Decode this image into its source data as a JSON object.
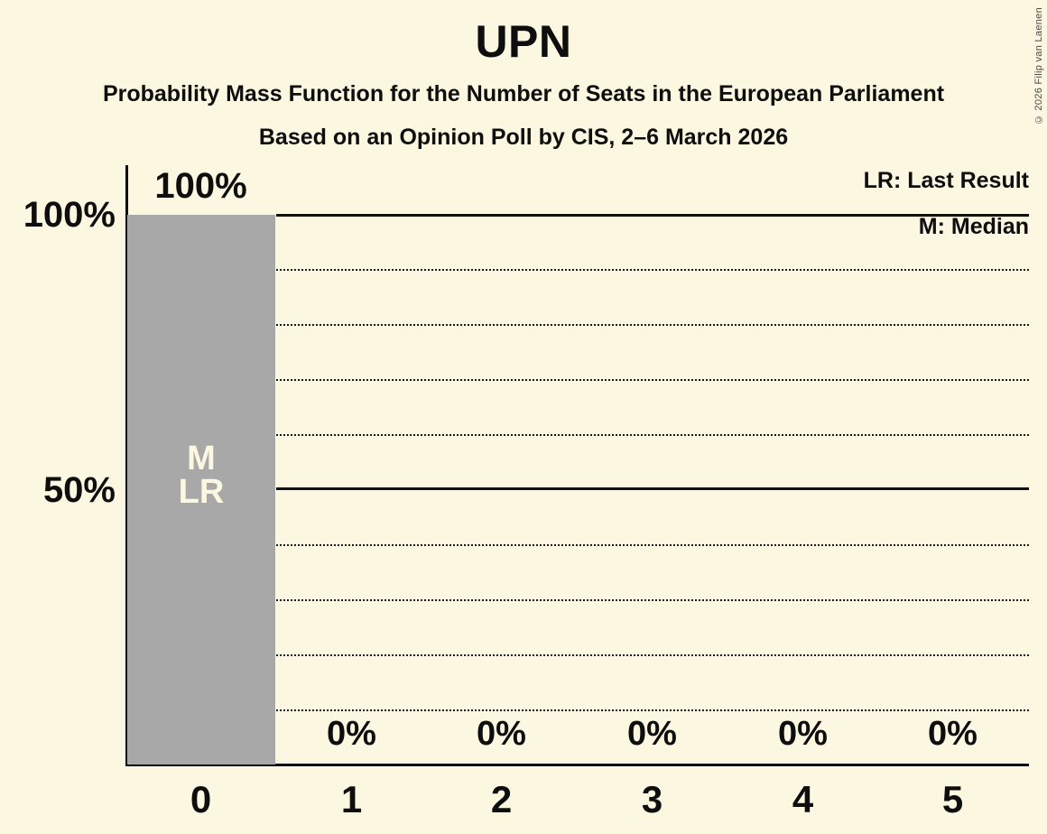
{
  "meta": {
    "copyright": "© 2026 Filip van Laenen"
  },
  "header": {
    "title": "UPN",
    "subtitle": "Probability Mass Function for the Number of Seats in the European Parliament",
    "poll_line": "Based on an Opinion Poll by CIS, 2–6 March 2026"
  },
  "chart_data": {
    "type": "bar",
    "title": "UPN",
    "subtitle": "Probability Mass Function for the Number of Seats in the European Parliament",
    "based_on": "Based on an Opinion Poll by CIS, 2–6 March 2026",
    "categories": [
      "0",
      "1",
      "2",
      "3",
      "4",
      "5"
    ],
    "values": [
      100,
      0,
      0,
      0,
      0,
      0
    ],
    "value_labels": [
      "100%",
      "0%",
      "0%",
      "0%",
      "0%",
      "0%"
    ],
    "ytick_labels": [
      "100%",
      "50%"
    ],
    "ylim": [
      0,
      100
    ],
    "grid_solid_pct": [
      100,
      50
    ],
    "grid_dotted_pct": [
      90,
      80,
      70,
      60,
      40,
      30,
      20,
      10
    ],
    "median_seats": 0,
    "last_result_seats": 0,
    "bar_markers": [
      "M",
      "LR"
    ],
    "legend": [
      "LR: Last Result",
      "M: Median"
    ],
    "legend_position": "top-right",
    "colors": {
      "background": "#FBF7E1",
      "bar": "#A8A8A8",
      "bar_label": "#FBF7E1",
      "text": "#0E0E0E"
    }
  }
}
